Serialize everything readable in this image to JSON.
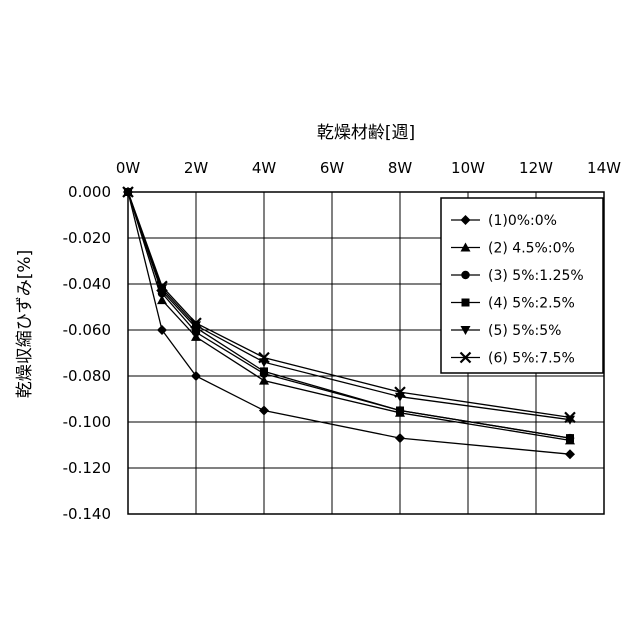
{
  "chart_data": {
    "type": "line",
    "xlabel": "乾燥材齢[週]",
    "ylabel": "乾燥収縮ひずみ[%]",
    "x_ticks": [
      "0W",
      "2W",
      "4W",
      "6W",
      "8W",
      "10W",
      "12W",
      "14W"
    ],
    "y_ticks": [
      "0.000",
      "-0.020",
      "-0.040",
      "-0.060",
      "-0.080",
      "-0.100",
      "-0.120",
      "-0.140"
    ],
    "xlim": [
      0,
      14
    ],
    "ylim": [
      -0.14,
      0
    ],
    "grid": true,
    "legend_position": "top-right",
    "series": [
      {
        "name": "(1)0%:0%",
        "marker": "diamond",
        "x": [
          0,
          1,
          2,
          4,
          8,
          13
        ],
        "y": [
          0.0,
          -0.06,
          -0.08,
          -0.095,
          -0.107,
          -0.114
        ]
      },
      {
        "name": "(2) 4.5%:0%",
        "marker": "triangle",
        "x": [
          0,
          1,
          2,
          4,
          8,
          13
        ],
        "y": [
          0.0,
          -0.047,
          -0.063,
          -0.082,
          -0.096,
          -0.108
        ]
      },
      {
        "name": "(3) 5%:1.25%",
        "marker": "circle",
        "x": [
          0,
          1,
          2,
          4,
          8,
          13
        ],
        "y": [
          0.0,
          -0.044,
          -0.061,
          -0.079,
          -0.095,
          -0.107
        ]
      },
      {
        "name": "(4) 5%:2.5%",
        "marker": "square",
        "x": [
          0,
          1,
          2,
          4,
          8,
          13
        ],
        "y": [
          0.0,
          -0.043,
          -0.059,
          -0.078,
          -0.095,
          -0.107
        ]
      },
      {
        "name": "(5) 5%:5%",
        "marker": "triangle-down",
        "x": [
          0,
          1,
          2,
          4,
          8,
          13
        ],
        "y": [
          0.0,
          -0.042,
          -0.058,
          -0.074,
          -0.089,
          -0.099
        ]
      },
      {
        "name": "(6) 5%:7.5%",
        "marker": "x",
        "x": [
          0,
          1,
          2,
          4,
          8,
          13
        ],
        "y": [
          0.0,
          -0.041,
          -0.057,
          -0.072,
          -0.087,
          -0.098
        ]
      }
    ]
  }
}
